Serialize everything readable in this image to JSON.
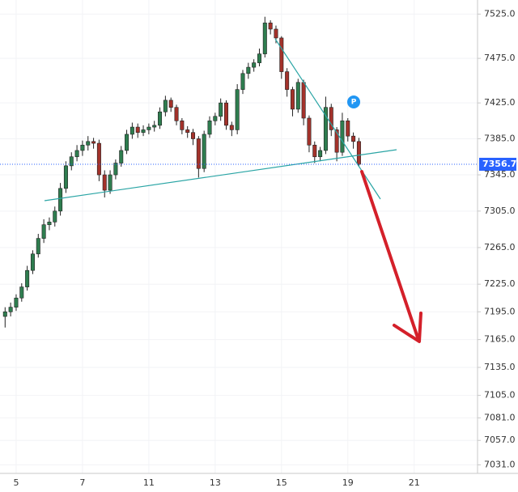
{
  "chart_data": {
    "type": "candlestick",
    "categories": [
      null,
      null,
      "5",
      null,
      null,
      null,
      null,
      null,
      null,
      null,
      null,
      null,
      null,
      null,
      "7",
      null,
      null,
      null,
      null,
      null,
      null,
      null,
      null,
      null,
      null,
      null,
      "11",
      null,
      null,
      null,
      null,
      null,
      null,
      null,
      null,
      null,
      null,
      null,
      "13",
      null,
      null,
      null,
      null,
      null,
      null,
      null,
      null,
      null,
      null,
      null,
      "15",
      null,
      null,
      null,
      null,
      null,
      null,
      null,
      null,
      null,
      null,
      null,
      "19",
      null,
      null,
      null,
      null,
      null,
      null,
      null,
      null,
      null,
      null,
      null,
      "21"
    ],
    "open": [
      7190,
      7195,
      7200,
      7210,
      7222,
      7240,
      7258,
      7275,
      7290,
      7293,
      7305,
      7330,
      7355,
      7365,
      7372,
      7378,
      7382,
      7380,
      7345,
      7328,
      7345,
      7358,
      7372,
      7390,
      7398,
      7392,
      7395,
      7398,
      7400,
      7415,
      7428,
      7420,
      7405,
      7395,
      7392,
      7385,
      7352,
      7390,
      7405,
      7410,
      7425,
      7400,
      7395,
      7440,
      7458,
      7465,
      7470,
      7480,
      7515,
      7508,
      7498,
      7460,
      7440,
      7418,
      7448,
      7408,
      7378,
      7365,
      7372,
      7420,
      7395,
      7370,
      7405,
      7388,
      7382,
      null,
      null,
      null,
      null,
      null,
      null,
      null,
      null,
      null,
      null
    ],
    "high": [
      7200,
      7205,
      7214,
      7226,
      7245,
      7262,
      7280,
      7296,
      7298,
      7310,
      7336,
      7360,
      7370,
      7378,
      7383,
      7388,
      7386,
      7384,
      7350,
      7350,
      7362,
      7377,
      7395,
      7403,
      7402,
      7400,
      7402,
      7405,
      7420,
      7433,
      7431,
      7423,
      7408,
      7399,
      7396,
      7388,
      7394,
      7410,
      7414,
      7430,
      7428,
      7404,
      7446,
      7462,
      7470,
      7474,
      7486,
      7522,
      7518,
      7512,
      7500,
      7464,
      7443,
      7452,
      7451,
      7411,
      7382,
      7376,
      7432,
      7424,
      7398,
      7414,
      7408,
      7392,
      7386,
      null,
      null,
      null,
      null,
      null,
      null,
      null,
      null,
      null,
      null
    ],
    "low": [
      7178,
      7190,
      7196,
      7206,
      7218,
      7236,
      7254,
      7270,
      7284,
      7288,
      7300,
      7325,
      7350,
      7360,
      7366,
      7372,
      7374,
      7338,
      7320,
      7324,
      7340,
      7354,
      7368,
      7385,
      7386,
      7388,
      7390,
      7393,
      7396,
      7410,
      7415,
      7400,
      7390,
      7386,
      7378,
      7342,
      7348,
      7386,
      7400,
      7405,
      7395,
      7388,
      7390,
      7435,
      7452,
      7460,
      7466,
      7476,
      7502,
      7492,
      7452,
      7432,
      7410,
      7414,
      7400,
      7370,
      7358,
      7360,
      7368,
      7388,
      7360,
      7366,
      7382,
      7374,
      7354,
      null,
      null,
      null,
      null,
      null,
      null,
      null,
      null,
      null,
      null
    ],
    "close": [
      7195,
      7200,
      7210,
      7222,
      7240,
      7258,
      7275,
      7290,
      7293,
      7305,
      7330,
      7355,
      7365,
      7372,
      7378,
      7382,
      7380,
      7345,
      7328,
      7345,
      7358,
      7372,
      7390,
      7398,
      7392,
      7395,
      7398,
      7400,
      7415,
      7428,
      7420,
      7405,
      7395,
      7392,
      7385,
      7352,
      7390,
      7405,
      7410,
      7425,
      7400,
      7395,
      7440,
      7458,
      7465,
      7470,
      7480,
      7515,
      7508,
      7498,
      7460,
      7440,
      7418,
      7448,
      7408,
      7378,
      7365,
      7372,
      7420,
      7395,
      7370,
      7405,
      7388,
      7382,
      7356.7,
      null,
      null,
      null,
      null,
      null,
      null,
      null,
      null,
      null,
      null
    ],
    "up_color": "#2e7d4f",
    "down_color": "#a3322b",
    "ylim": [
      7022,
      7541
    ],
    "log_scale": true,
    "yticks": [
      {
        "value": 7525,
        "label": "7525.0"
      },
      {
        "value": 7475,
        "label": "7475.0"
      },
      {
        "value": 7425,
        "label": "7425.0"
      },
      {
        "value": 7385,
        "label": "7385.0"
      },
      {
        "value": 7345,
        "label": "7345.0"
      },
      {
        "value": 7305,
        "label": "7305.0"
      },
      {
        "value": 7265,
        "label": "7265.0"
      },
      {
        "value": 7225,
        "label": "7225.0"
      },
      {
        "value": 7195,
        "label": "7195.0"
      },
      {
        "value": 7165,
        "label": "7165.0"
      },
      {
        "value": 7135,
        "label": "7135.0"
      },
      {
        "value": 7105,
        "label": "7105.0"
      },
      {
        "value": 7081,
        "label": "7081.0"
      },
      {
        "value": 7057,
        "label": "7057.0"
      },
      {
        "value": 7031,
        "label": "7031.0"
      }
    ],
    "last_price": 7356.7,
    "last_price_color": "#2962ff",
    "marker_label": "P"
  }
}
